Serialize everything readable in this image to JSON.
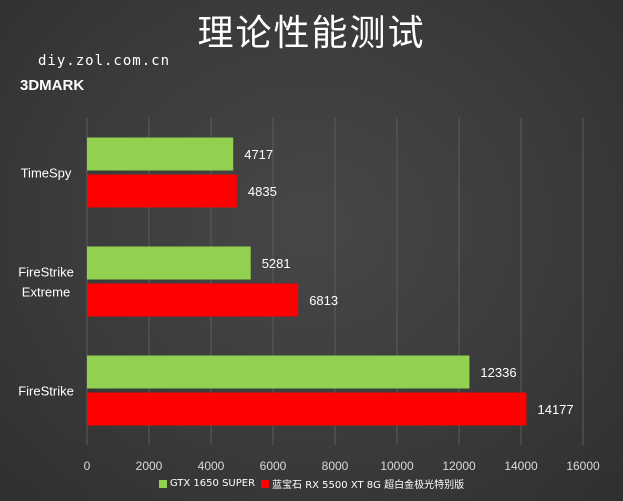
{
  "title": "理论性能测试",
  "watermark": "diy.zol.com.cn",
  "subtitle": "3DMARK",
  "chart_data": {
    "type": "bar",
    "orientation": "horizontal",
    "categories": [
      "TimeSpy",
      "FireStrike Extreme",
      "FireStrike"
    ],
    "series": [
      {
        "name": "GTX 1650 SUPER",
        "color": "#92d050",
        "values": [
          4717,
          5281,
          12336
        ]
      },
      {
        "name": "蓝宝石 RX 5500 XT 8G 超白金极光特别版",
        "color": "#ff0000",
        "values": [
          4835,
          6813,
          14177
        ]
      }
    ],
    "xlim": [
      0,
      16000
    ],
    "xticks": [
      "0",
      "2000",
      "4000",
      "6000",
      "8000",
      "10000",
      "12000",
      "14000",
      "16000"
    ],
    "grid": true,
    "legend_position": "bottom"
  }
}
